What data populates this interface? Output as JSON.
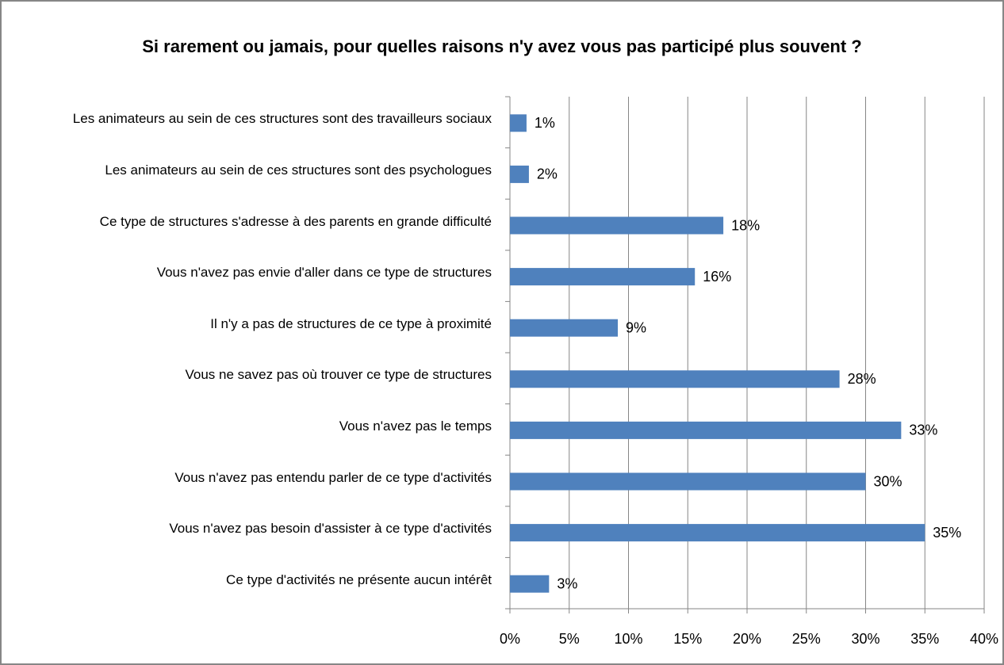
{
  "chart_data": {
    "type": "bar",
    "orientation": "horizontal",
    "title": "Si rarement ou jamais, pour quelles raisons n'y avez vous pas participé plus souvent ?",
    "categories": [
      "Les animateurs au sein de ces structures sont des travailleurs sociaux",
      "Les animateurs au sein de ces structures sont des psychologues",
      "Ce type de structures s'adresse à des parents en grande difficulté",
      "Vous n'avez pas envie d'aller dans ce type de structures",
      "Il n'y a pas de structures de ce type à proximité",
      "Vous ne savez pas où trouver ce type de structures",
      "Vous n'avez pas le temps",
      "Vous n'avez pas entendu parler de ce type d'activités",
      "Vous n'avez pas besoin d'assister à ce type d'activités",
      "Ce type d'activités ne présente aucun intérêt"
    ],
    "values": [
      1.4,
      1.6,
      18.0,
      15.6,
      9.1,
      27.8,
      33.0,
      30.0,
      35.0,
      3.3
    ],
    "value_labels": [
      "1%",
      "2%",
      "18%",
      "16%",
      "9%",
      "28%",
      "33%",
      "30%",
      "35%",
      "3%"
    ],
    "color": "#4f81bd",
    "xlim": [
      0,
      40
    ],
    "xticks": [
      {
        "value": 0,
        "label": "0%"
      },
      {
        "value": 5,
        "label": "5%"
      },
      {
        "value": 10,
        "label": "10%"
      },
      {
        "value": 15,
        "label": "15%"
      },
      {
        "value": 20,
        "label": "20%"
      },
      {
        "value": 25,
        "label": "25%"
      },
      {
        "value": 30,
        "label": "30%"
      },
      {
        "value": 35,
        "label": "35%"
      },
      {
        "value": 40,
        "label": "40%"
      }
    ],
    "grid": true
  }
}
